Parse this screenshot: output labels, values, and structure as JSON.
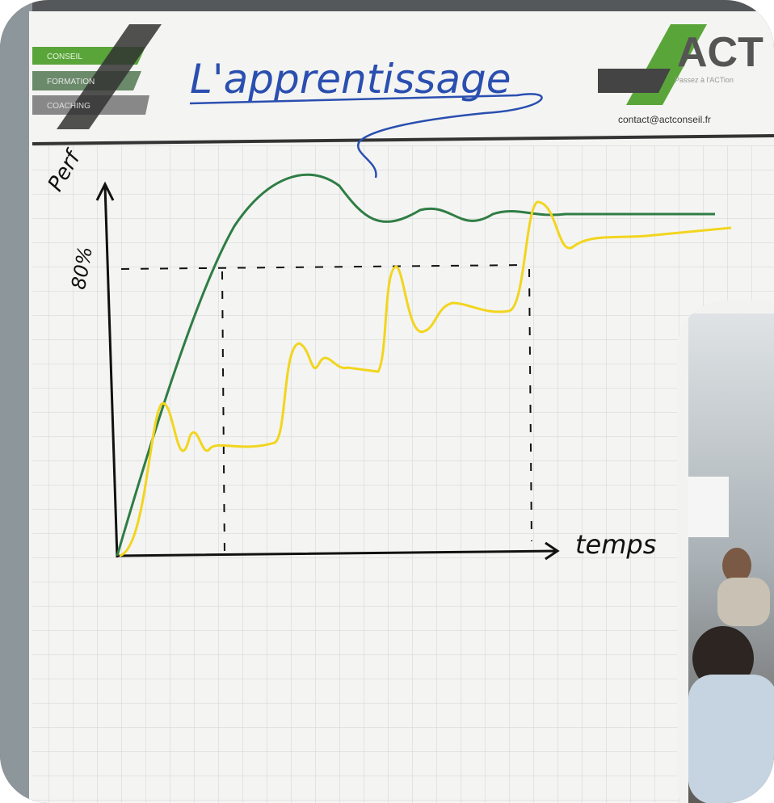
{
  "logo_left": {
    "items": [
      "CONSEIL",
      "FORMATION",
      "COACHING"
    ]
  },
  "title": "L'apprentissage",
  "logo_right": {
    "name": "ACT",
    "tagline": "Passez à l'ACTion",
    "email": "contact@actconseil.fr"
  },
  "sketch": {
    "y_label": "Perf",
    "threshold_label": "80%",
    "x_label": "temps"
  }
}
